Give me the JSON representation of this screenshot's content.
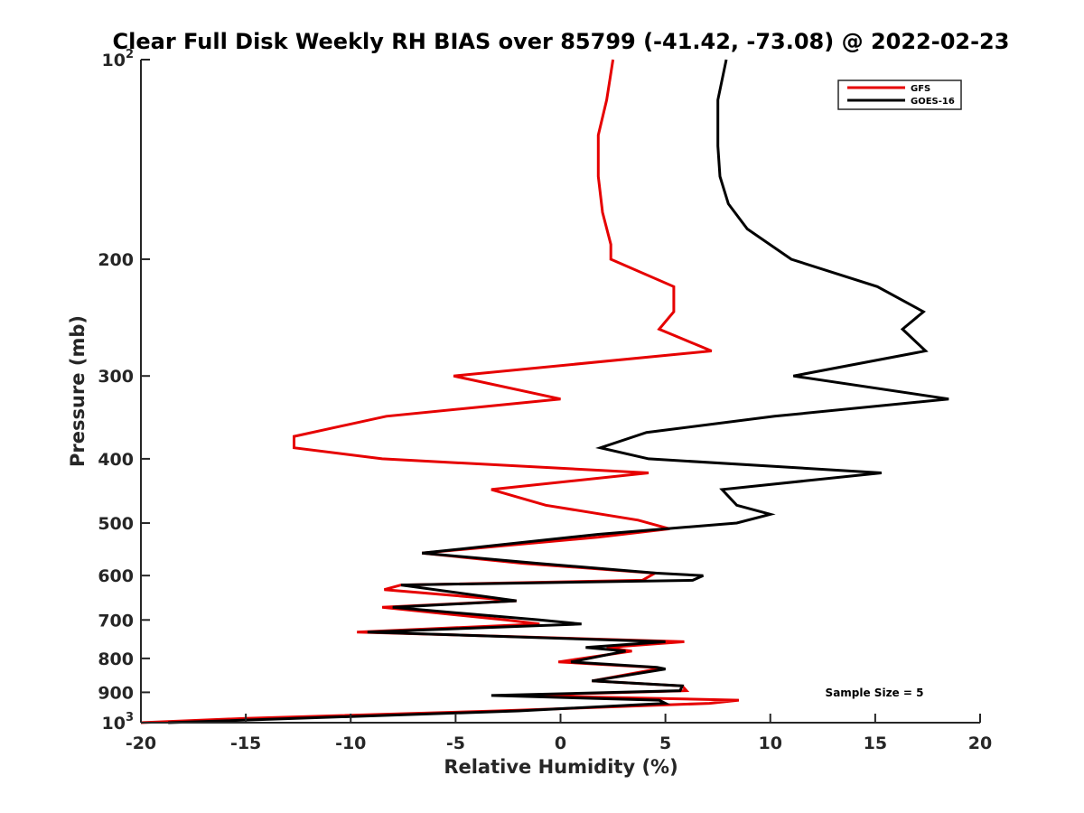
{
  "chart_data": {
    "type": "line",
    "title": "Clear Full Disk Weekly RH BIAS over 85799 (-41.42, -73.08) @ 2022-02-23",
    "xlabel": "Relative Humidity (%)",
    "ylabel": "Pressure (mb)",
    "xlim": [
      -20,
      20
    ],
    "ylim": [
      100,
      1000
    ],
    "y_scale": "log",
    "y_reversed": true,
    "x_ticks": [
      {
        "value": -20,
        "label": "-20"
      },
      {
        "value": -15,
        "label": "-15"
      },
      {
        "value": -10,
        "label": "-10"
      },
      {
        "value": -5,
        "label": "-5"
      },
      {
        "value": 0,
        "label": "0"
      },
      {
        "value": 5,
        "label": "5"
      },
      {
        "value": 10,
        "label": "10"
      },
      {
        "value": 15,
        "label": "15"
      },
      {
        "value": 20,
        "label": "20"
      }
    ],
    "y_ticks": [
      {
        "value": 100,
        "label": "10",
        "exp": "2"
      },
      {
        "value": 200,
        "label": "200"
      },
      {
        "value": 300,
        "label": "300"
      },
      {
        "value": 400,
        "label": "400"
      },
      {
        "value": 500,
        "label": "500"
      },
      {
        "value": 600,
        "label": "600"
      },
      {
        "value": 700,
        "label": "700"
      },
      {
        "value": 800,
        "label": "800"
      },
      {
        "value": 900,
        "label": "900"
      },
      {
        "value": 1000,
        "label": "10",
        "exp": "3"
      }
    ],
    "grid": false,
    "legend_position": "top-right",
    "annotation": "Sample Size = 5",
    "series": [
      {
        "name": "GFS",
        "color": "#e60000",
        "points": [
          [
            2.5,
            100
          ],
          [
            2.2,
            115
          ],
          [
            1.8,
            130
          ],
          [
            1.8,
            150
          ],
          [
            2.0,
            170
          ],
          [
            2.4,
            190
          ],
          [
            2.4,
            200
          ],
          [
            5.4,
            220
          ],
          [
            5.4,
            240
          ],
          [
            4.7,
            255
          ],
          [
            7.2,
            275
          ],
          [
            -5.1,
            300
          ],
          [
            0.0,
            325
          ],
          [
            -8.3,
            345
          ],
          [
            -12.7,
            370
          ],
          [
            -12.7,
            385
          ],
          [
            -8.5,
            400
          ],
          [
            4.2,
            420
          ],
          [
            -3.3,
            445
          ],
          [
            -0.7,
            470
          ],
          [
            3.7,
            495
          ],
          [
            5.2,
            510
          ],
          [
            1.8,
            525
          ],
          [
            -6.6,
            555
          ],
          [
            -1.8,
            575
          ],
          [
            4.5,
            595
          ],
          [
            3.9,
            610
          ],
          [
            -7.6,
            620
          ],
          [
            -8.4,
            630
          ],
          [
            -2.1,
            655
          ],
          [
            -8.5,
            670
          ],
          [
            -2.6,
            700
          ],
          [
            -1.0,
            710
          ],
          [
            -9.7,
            730
          ],
          [
            5.9,
            755
          ],
          [
            2.2,
            770
          ],
          [
            3.4,
            780
          ],
          [
            -0.1,
            810
          ],
          [
            4.4,
            825
          ],
          [
            4.6,
            830
          ],
          [
            1.5,
            865
          ],
          [
            5.8,
            880
          ],
          [
            6.0,
            895
          ],
          [
            -2.0,
            910
          ],
          [
            8.5,
            925
          ],
          [
            7.1,
            935
          ],
          [
            -3.0,
            960
          ],
          [
            -15.0,
            985
          ],
          [
            -20.0,
            1000
          ]
        ]
      },
      {
        "name": "GOES-16",
        "color": "#000000",
        "points": [
          [
            7.9,
            100
          ],
          [
            7.5,
            115
          ],
          [
            7.5,
            135
          ],
          [
            7.6,
            150
          ],
          [
            8.0,
            165
          ],
          [
            8.9,
            180
          ],
          [
            11.0,
            200
          ],
          [
            15.1,
            220
          ],
          [
            17.3,
            240
          ],
          [
            16.3,
            255
          ],
          [
            17.4,
            275
          ],
          [
            11.1,
            300
          ],
          [
            18.5,
            325
          ],
          [
            10.2,
            345
          ],
          [
            4.1,
            365
          ],
          [
            1.9,
            385
          ],
          [
            4.2,
            400
          ],
          [
            15.3,
            420
          ],
          [
            7.7,
            445
          ],
          [
            8.4,
            470
          ],
          [
            10.0,
            485
          ],
          [
            8.4,
            500
          ],
          [
            1.8,
            520
          ],
          [
            -6.6,
            555
          ],
          [
            -1.1,
            575
          ],
          [
            4.6,
            595
          ],
          [
            6.8,
            600
          ],
          [
            6.3,
            610
          ],
          [
            -7.6,
            620
          ],
          [
            -2.1,
            655
          ],
          [
            -8.0,
            670
          ],
          [
            -1.0,
            700
          ],
          [
            1.0,
            710
          ],
          [
            -9.2,
            730
          ],
          [
            5.0,
            755
          ],
          [
            1.2,
            770
          ],
          [
            3.1,
            780
          ],
          [
            0.5,
            810
          ],
          [
            4.6,
            825
          ],
          [
            5.0,
            830
          ],
          [
            1.5,
            865
          ],
          [
            5.8,
            880
          ],
          [
            5.7,
            895
          ],
          [
            -3.3,
            910
          ],
          [
            4.7,
            925
          ],
          [
            5.0,
            935
          ],
          [
            -2.0,
            960
          ],
          [
            -18.7,
            1000
          ]
        ]
      }
    ]
  }
}
